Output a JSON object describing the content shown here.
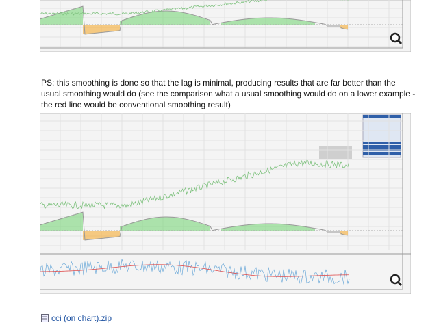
{
  "post": {
    "paragraph": "PS: this smoothing is done so that the lag is minimal, producing results that are far better than the usual smoothing would do (see the comparison what a usual smoothing would do on a lower example - the red line would be conventional smoothing result)",
    "attachment": "cci (on chart).zip"
  }
}
